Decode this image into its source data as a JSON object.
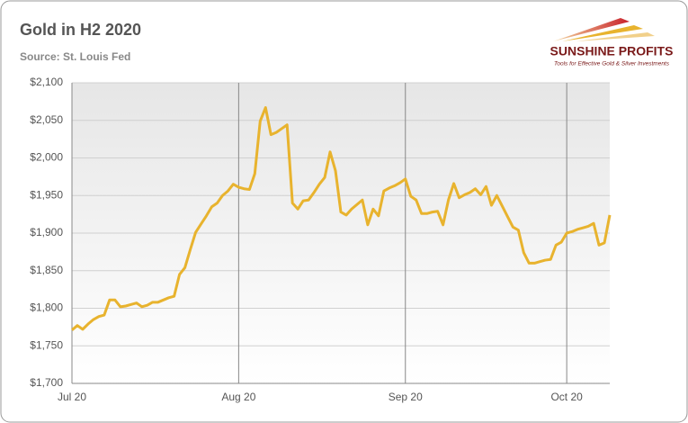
{
  "chart_data": {
    "type": "line",
    "title": "Gold in H2 2020",
    "subtitle": "Source: St. Louis Fed",
    "logo": {
      "name": "SUNSHINE PROFITS",
      "tagline": "Tools for Effective Gold & Silver Investments"
    },
    "categories": [
      "Jul 20",
      null,
      null,
      null,
      null,
      null,
      null,
      null,
      null,
      null,
      null,
      null,
      null,
      null,
      null,
      null,
      null,
      null,
      null,
      null,
      null,
      null,
      null,
      null,
      null,
      null,
      null,
      null,
      null,
      null,
      null,
      "Aug 20",
      null,
      null,
      null,
      null,
      null,
      null,
      null,
      null,
      null,
      null,
      null,
      null,
      null,
      null,
      null,
      null,
      null,
      null,
      null,
      null,
      null,
      null,
      null,
      null,
      null,
      null,
      null,
      null,
      null,
      null,
      "Sep 20",
      null,
      null,
      null,
      null,
      null,
      null,
      null,
      null,
      null,
      null,
      null,
      null,
      null,
      null,
      null,
      null,
      null,
      null,
      null,
      null,
      null,
      null,
      null,
      null,
      null,
      null,
      null,
      null,
      null,
      "Oct 20",
      null,
      null,
      null,
      null,
      null,
      null,
      null,
      null
    ],
    "values": [
      1771,
      1777,
      1772,
      1779,
      1785,
      1789,
      1791,
      1811,
      1811,
      1802,
      1803,
      1805,
      1807,
      1802,
      1804,
      1808,
      1808,
      1811,
      1814,
      1816,
      1845,
      1854,
      1878,
      1901,
      1912,
      1923,
      1935,
      1940,
      1950,
      1956,
      1965,
      1961,
      1959,
      1958,
      1979,
      2049,
      2067,
      2031,
      2034,
      2039,
      2044,
      1940,
      1932,
      1943,
      1944,
      1954,
      1965,
      1974,
      2008,
      1983,
      1928,
      1924,
      1932,
      1938,
      1944,
      1911,
      1932,
      1923,
      1956,
      1960,
      1963,
      1967,
      1972,
      1949,
      1944,
      1926,
      1926,
      1928,
      1929,
      1911,
      1944,
      1966,
      1947,
      1951,
      1954,
      1959,
      1951,
      1962,
      1937,
      1950,
      1936,
      1922,
      1908,
      1904,
      1874,
      1860,
      1860,
      1862,
      1864,
      1865,
      1884,
      1888,
      1900,
      1902,
      1905,
      1907,
      1909,
      1913,
      1884,
      1887,
      1924
    ],
    "color": "#e8b32e",
    "ylim": [
      1700,
      2100
    ],
    "yticks": [
      {
        "value": 1700,
        "label": "$1,700"
      },
      {
        "value": 1750,
        "label": "$1,750"
      },
      {
        "value": 1800,
        "label": "$1,800"
      },
      {
        "value": 1850,
        "label": "$1,850"
      },
      {
        "value": 1900,
        "label": "$1,900"
      },
      {
        "value": 1950,
        "label": "$1,950"
      },
      {
        "value": 2000,
        "label": "$2,000"
      },
      {
        "value": 2050,
        "label": "$2,050"
      },
      {
        "value": 2100,
        "label": "$2,100"
      }
    ],
    "grid": true
  }
}
